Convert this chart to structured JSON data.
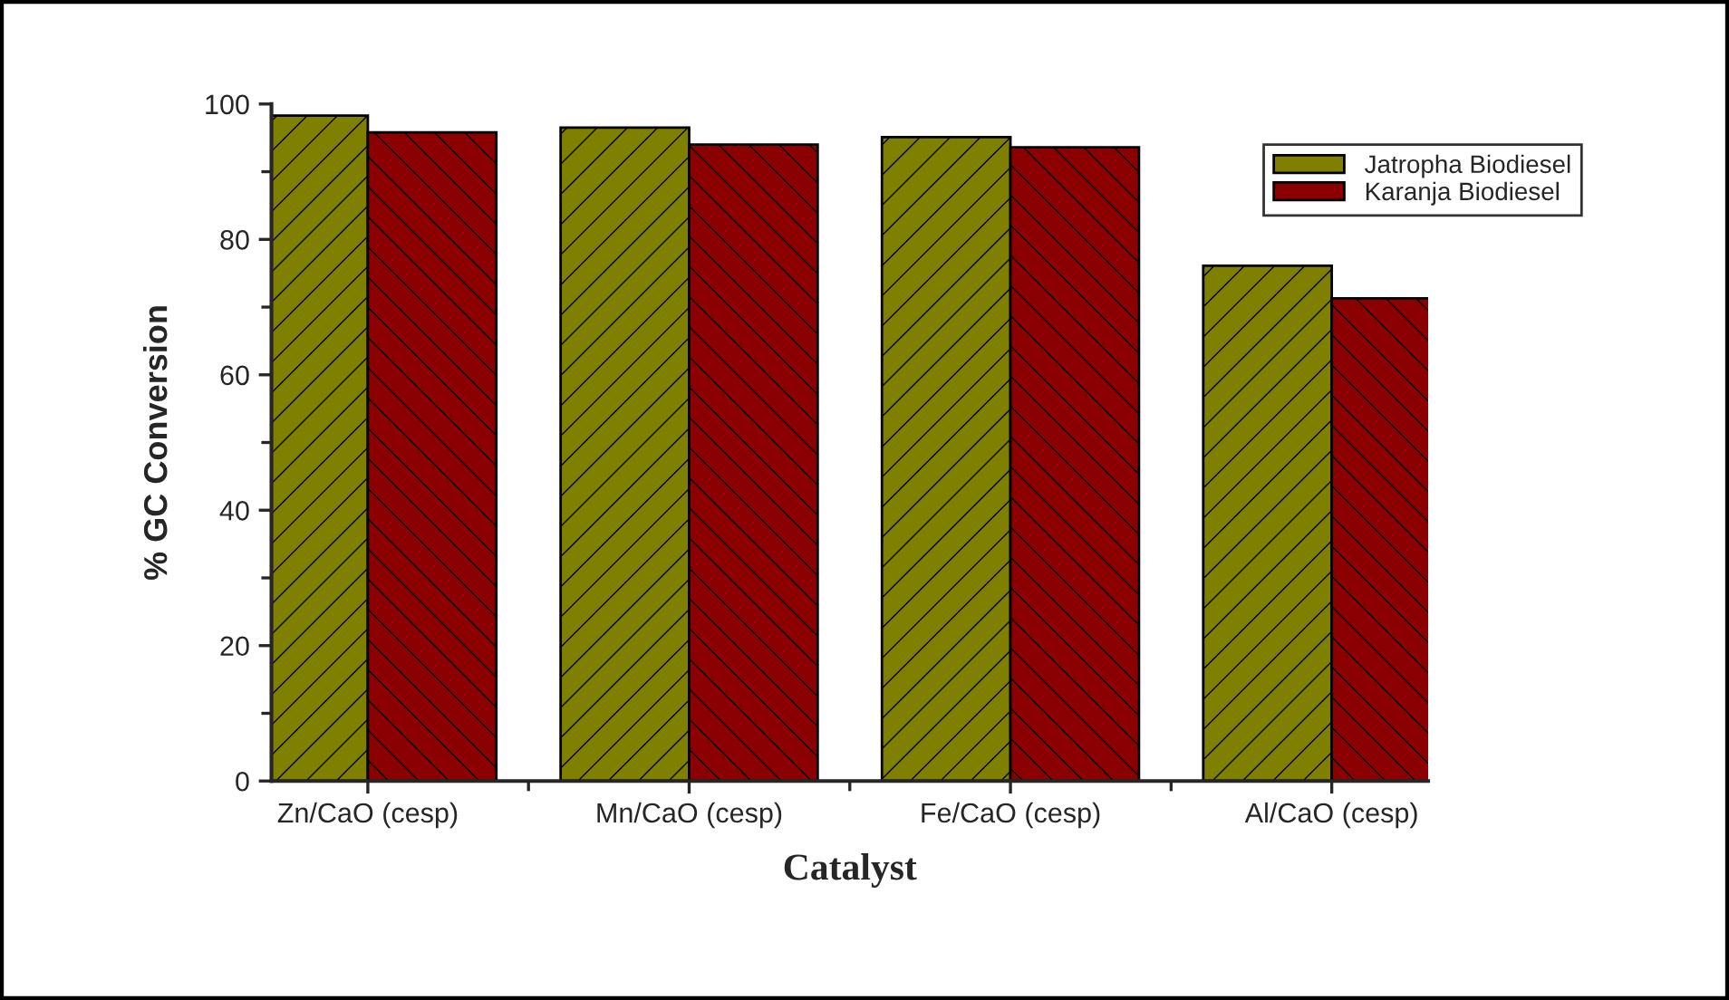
{
  "chart_data": {
    "type": "bar",
    "xlabel": "Catalyst",
    "ylabel": "% GC Conversion",
    "categories": [
      "Zn/CaO (cesp)",
      "Mn/CaO (cesp)",
      "Fe/CaO (cesp)",
      "Al/CaO (cesp)"
    ],
    "series": [
      {
        "name": "Jatropha Biodiesel",
        "color": "#7f7f00",
        "values": [
          98.3,
          96.5,
          95.1,
          76.1
        ]
      },
      {
        "name": "Karanja Biodiesel",
        "color": "#8b0000",
        "values": [
          95.8,
          94.0,
          93.6,
          71.3
        ]
      }
    ],
    "ylim": [
      0,
      100
    ],
    "yticks": [
      0,
      20,
      40,
      60,
      80,
      100
    ],
    "grid": false,
    "legend": "top right"
  }
}
